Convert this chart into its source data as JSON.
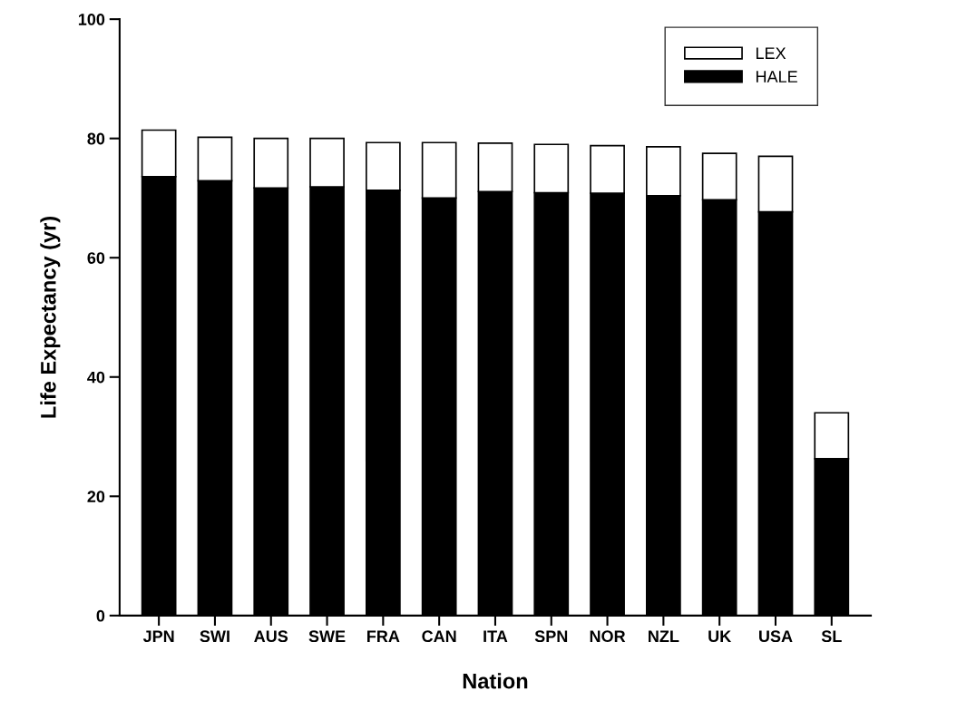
{
  "chart_data": {
    "type": "bar",
    "stacked": true,
    "xlabel": "Nation",
    "ylabel": "Life Expectancy (yr)",
    "categories": [
      "JPN",
      "SWI",
      "AUS",
      "SWE",
      "FRA",
      "CAN",
      "ITA",
      "SPN",
      "NOR",
      "NZL",
      "UK",
      "USA",
      "SL"
    ],
    "series": [
      {
        "name": "HALE",
        "color": "#000000",
        "values": [
          73.6,
          72.9,
          71.7,
          71.9,
          71.3,
          70.0,
          71.1,
          70.9,
          70.8,
          70.4,
          69.7,
          67.7,
          26.3
        ]
      },
      {
        "name": "LEX",
        "color": "#ffffff",
        "values": [
          7.8,
          7.3,
          8.3,
          8.1,
          8.0,
          9.3,
          8.1,
          8.1,
          8.0,
          8.2,
          7.8,
          9.3,
          7.7
        ]
      }
    ],
    "ylim": [
      0,
      100
    ],
    "yticks": [
      0,
      20,
      40,
      60,
      80,
      100
    ],
    "grid": false,
    "legend": "top right"
  }
}
